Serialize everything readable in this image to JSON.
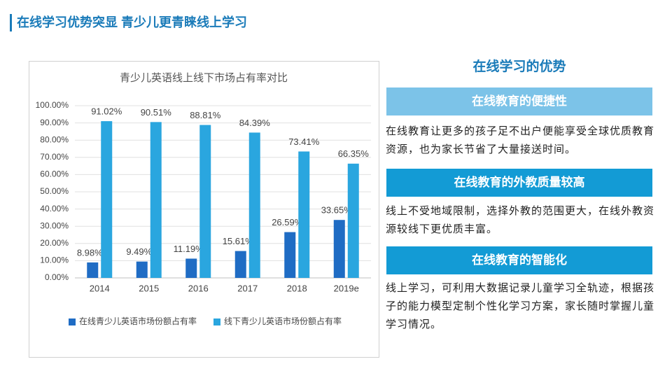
{
  "header": {
    "title": "在线学习优势突显 青少儿更青睐线上学习"
  },
  "chart_data": {
    "type": "bar",
    "title": "青少儿英语线上线下市场占有率对比",
    "categories": [
      "2014",
      "2015",
      "2016",
      "2017",
      "2018",
      "2019e"
    ],
    "series": [
      {
        "name": "在线青少儿英语市场份额占有率",
        "color": "#1f6cc4",
        "values": [
          8.98,
          9.49,
          11.19,
          15.61,
          26.59,
          33.65
        ],
        "value_labels": [
          "8.98%",
          "9.49%",
          "11.19%",
          "15.61%",
          "26.59%",
          "33.65%"
        ]
      },
      {
        "name": "线下青少儿英语市场份额占有率",
        "color": "#2aa6df",
        "values": [
          91.02,
          90.51,
          88.81,
          84.39,
          73.41,
          66.35
        ],
        "value_labels": [
          "91.02%",
          "90.51%",
          "88.81%",
          "84.39%",
          "73.41%",
          "66.35%"
        ]
      }
    ],
    "ylim": [
      0,
      100
    ],
    "yticks": [
      {
        "value": 0,
        "label": "0.00%"
      },
      {
        "value": 10,
        "label": "10.00%"
      },
      {
        "value": 20,
        "label": "20.00%"
      },
      {
        "value": 30,
        "label": "30.00%"
      },
      {
        "value": 40,
        "label": "40.00%"
      },
      {
        "value": 50,
        "label": "50.00%"
      },
      {
        "value": 60,
        "label": "60.00%"
      },
      {
        "value": 70,
        "label": "70.00%"
      },
      {
        "value": 80,
        "label": "80.00%"
      },
      {
        "value": 90,
        "label": "90.00%"
      },
      {
        "value": 100,
        "label": "100.00%"
      }
    ],
    "grid": true,
    "legend": "bottom"
  },
  "panel": {
    "title": "在线学习的优势",
    "sections": [
      {
        "heading": "在线教育的便捷性",
        "text": "在线教育让更多的孩子足不出户便能享受全球优质教育资源，也为家长节省了大量接送时间。"
      },
      {
        "heading": "在线教育的外教质量较高",
        "text": "线上不受地域限制，选择外教的范围更大，在线外教资源较线下更优质丰富。"
      },
      {
        "heading": "在线教育的智能化",
        "text": "线上学习，可利用大数据记录儿童学习全轨迹，根据孩子的能力模型定制个性化学习方案，家长随时掌握儿童学习情况。"
      }
    ]
  }
}
